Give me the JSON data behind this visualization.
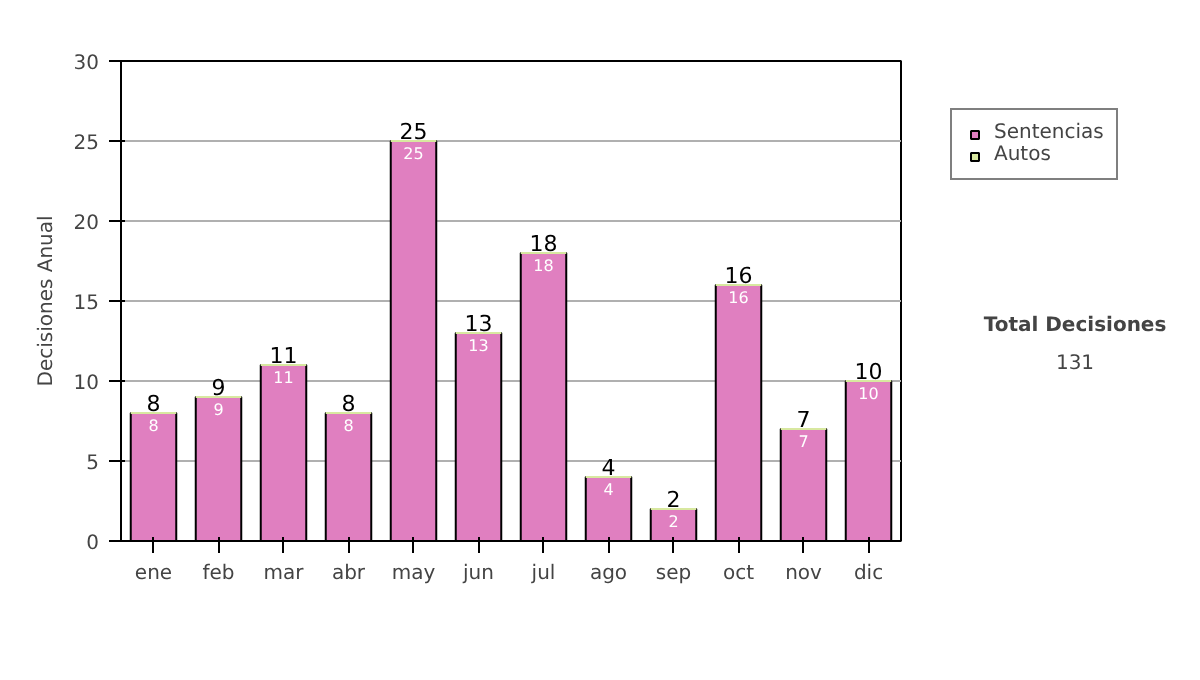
{
  "chart_data": {
    "type": "bar",
    "stacked": true,
    "ylabel": "Decisiones Anual",
    "categories": [
      "ene",
      "feb",
      "mar",
      "abr",
      "may",
      "jun",
      "jul",
      "ago",
      "sep",
      "oct",
      "nov",
      "dic"
    ],
    "series": [
      {
        "name": "Sentencias",
        "color": "#e07fc0",
        "values": [
          8,
          9,
          11,
          8,
          25,
          13,
          18,
          4,
          2,
          16,
          7,
          10
        ],
        "value_labels": [
          "8",
          "9",
          "11",
          "8",
          "25",
          "13",
          "18",
          "4",
          "2",
          "16",
          "7",
          "10"
        ]
      },
      {
        "name": "Autos",
        "color": "#d8e8a0",
        "values": [
          0,
          0,
          0,
          0,
          0,
          0,
          0,
          0,
          0,
          0,
          0,
          0
        ]
      }
    ],
    "totals": [
      "8",
      "9",
      "11",
      "8",
      "25",
      "13",
      "18",
      "4",
      "2",
      "16",
      "7",
      "10"
    ],
    "ylim": [
      0,
      30
    ],
    "yticks": [
      0,
      5,
      10,
      15,
      20,
      25,
      30
    ],
    "grid": "y",
    "legend": "right",
    "annotations": [
      "Total Decisiones",
      "131"
    ]
  }
}
